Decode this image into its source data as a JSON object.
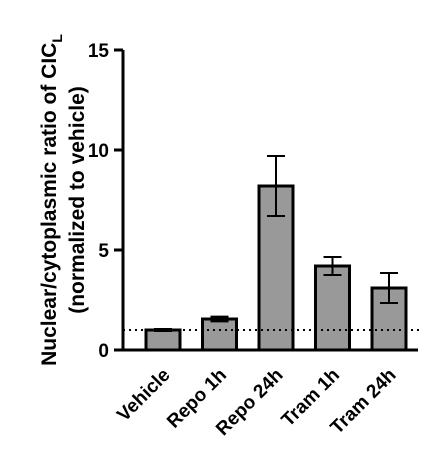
{
  "chart_data": {
    "type": "bar",
    "title": "",
    "xlabel": "",
    "ylabel_line1": "Nuclear/cytoplasmic ratio of CIC",
    "ylabel_subscript": "L",
    "ylabel_line2": "(normalized to vehicle)",
    "ylim": [
      0,
      15
    ],
    "yticks": [
      0,
      5,
      10,
      15
    ],
    "categories": [
      "Vehicle",
      "Repo 1h",
      "Repo 24h",
      "Tram 1h",
      "Tram 24h"
    ],
    "values": [
      1.0,
      1.55,
      8.2,
      4.2,
      3.1
    ],
    "errors": [
      0.05,
      0.12,
      1.5,
      0.45,
      0.75
    ],
    "reference_line": 1.0,
    "grid": false,
    "legend": "none",
    "bar_color": "#999999",
    "edge_color": "#000000"
  }
}
